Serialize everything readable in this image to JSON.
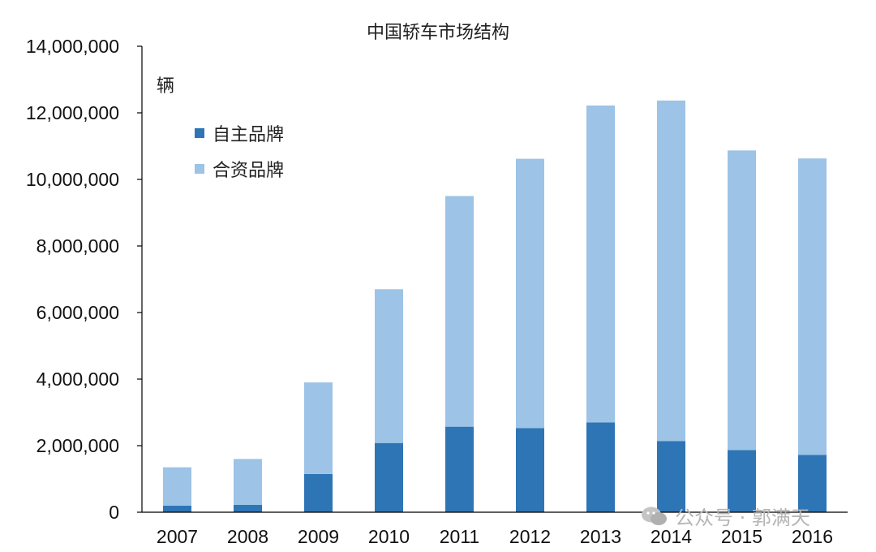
{
  "chart_data": {
    "type": "bar",
    "stacked": true,
    "title": "中国轿车市场结构",
    "ylabel": "辆",
    "xlabel": "",
    "categories": [
      "2007",
      "2008",
      "2009",
      "2010",
      "2011",
      "2012",
      "2013",
      "2014",
      "2015",
      "2016"
    ],
    "ylim": [
      0,
      14000000
    ],
    "yticks": [
      "0",
      "2,000,000",
      "4,000,000",
      "6,000,000",
      "8,000,000",
      "10,000,000",
      "12,000,000",
      "14,000,000"
    ],
    "series": [
      {
        "name": "自主品牌",
        "color": "#2e75b6",
        "values": [
          200000,
          220000,
          1150000,
          2080000,
          2570000,
          2530000,
          2700000,
          2140000,
          1870000,
          1720000
        ]
      },
      {
        "name": "合资品牌",
        "color": "#9dc3e6",
        "values": [
          1150000,
          1380000,
          2750000,
          4620000,
          6930000,
          8090000,
          9520000,
          10230000,
          9000000,
          8910000
        ]
      }
    ],
    "grid": false,
    "legend_position": "top-left"
  },
  "watermark": {
    "text": "公众号 · 郭满天",
    "icon": "wechat-icon"
  }
}
